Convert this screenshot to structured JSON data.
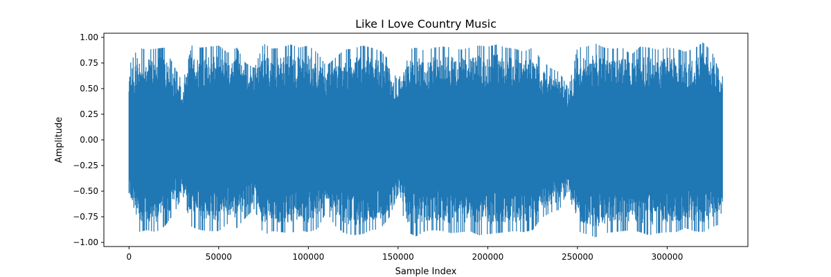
{
  "chart_data": {
    "type": "line",
    "title": "Like I Love Country Music",
    "xlabel": "Sample Index",
    "ylabel": "Amplitude",
    "xlim": [
      -14000,
      345000
    ],
    "ylim": [
      -1.04,
      1.04
    ],
    "x_ticks": [
      0,
      50000,
      100000,
      150000,
      200000,
      250000,
      300000
    ],
    "x_tick_labels": [
      "0",
      "50000",
      "100000",
      "150000",
      "200000",
      "250000",
      "300000"
    ],
    "y_ticks": [
      1.0,
      0.75,
      0.5,
      0.25,
      0.0,
      -0.25,
      -0.5,
      -0.75,
      -1.0
    ],
    "y_tick_labels": [
      "1.00",
      "0.75",
      "0.50",
      "0.25",
      "0.00",
      "−0.25",
      "−0.50",
      "−0.75",
      "−1.00"
    ],
    "grid": false,
    "series_color": "#1f77b4",
    "series": [
      {
        "sample_count": 331000,
        "envelope_x": [
          0,
          5000,
          10000,
          15000,
          20000,
          25000,
          30000,
          35000,
          40000,
          45000,
          50000,
          55000,
          60000,
          65000,
          70000,
          75000,
          80000,
          85000,
          90000,
          95000,
          100000,
          105000,
          110000,
          115000,
          120000,
          125000,
          130000,
          135000,
          140000,
          145000,
          150000,
          155000,
          160000,
          165000,
          170000,
          175000,
          180000,
          185000,
          190000,
          195000,
          200000,
          205000,
          210000,
          215000,
          220000,
          225000,
          230000,
          235000,
          240000,
          245000,
          250000,
          255000,
          260000,
          265000,
          270000,
          275000,
          280000,
          285000,
          290000,
          295000,
          300000,
          305000,
          310000,
          315000,
          320000,
          325000,
          330000
        ],
        "envelope_max": [
          0.72,
          0.9,
          0.88,
          0.89,
          0.9,
          0.72,
          0.56,
          0.92,
          0.9,
          0.91,
          0.92,
          0.85,
          0.9,
          0.75,
          0.7,
          0.94,
          0.89,
          0.9,
          0.93,
          0.9,
          0.92,
          0.85,
          0.72,
          0.8,
          0.88,
          0.89,
          0.92,
          0.9,
          0.87,
          0.78,
          0.56,
          0.88,
          0.9,
          0.87,
          0.9,
          0.91,
          0.9,
          0.88,
          0.9,
          0.92,
          0.91,
          0.93,
          0.9,
          0.89,
          0.86,
          0.9,
          0.78,
          0.7,
          0.66,
          0.5,
          0.9,
          0.91,
          0.94,
          0.9,
          0.89,
          0.9,
          0.83,
          0.91,
          0.9,
          0.88,
          0.9,
          0.89,
          0.86,
          0.89,
          0.95,
          0.86,
          0.62
        ],
        "envelope_min": [
          -0.58,
          -0.9,
          -0.88,
          -0.9,
          -0.84,
          -0.72,
          -0.54,
          -0.85,
          -0.88,
          -0.89,
          -0.89,
          -0.82,
          -0.86,
          -0.76,
          -0.67,
          -0.93,
          -0.89,
          -0.9,
          -0.91,
          -0.88,
          -0.9,
          -0.87,
          -0.7,
          -0.84,
          -0.91,
          -0.93,
          -0.92,
          -0.88,
          -0.87,
          -0.76,
          -0.53,
          -0.9,
          -0.94,
          -0.89,
          -0.88,
          -0.89,
          -0.91,
          -0.9,
          -0.89,
          -0.93,
          -0.92,
          -0.91,
          -0.9,
          -0.89,
          -0.9,
          -0.88,
          -0.76,
          -0.71,
          -0.68,
          -0.48,
          -0.89,
          -0.92,
          -0.95,
          -0.91,
          -0.9,
          -0.89,
          -0.88,
          -0.9,
          -0.93,
          -0.91,
          -0.9,
          -0.9,
          -0.86,
          -0.89,
          -0.9,
          -0.85,
          -0.82
        ]
      }
    ]
  }
}
